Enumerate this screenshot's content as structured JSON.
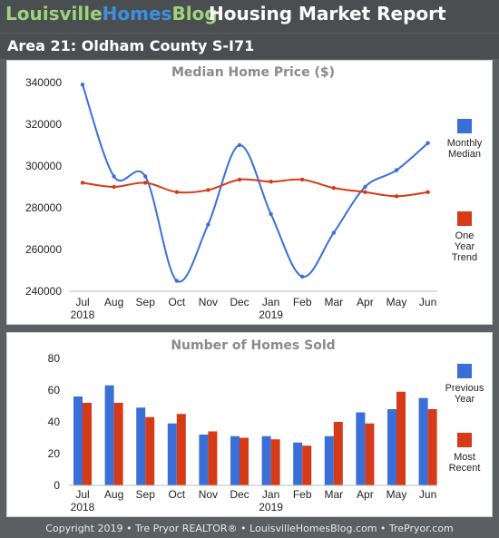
{
  "header": {
    "brand_part1": "Louisville",
    "brand_part2": "Homes",
    "brand_part3": "Blog",
    "report_title": "Housing Market Report"
  },
  "area": {
    "title": "Area 21: Oldham County S-I71"
  },
  "footer": {
    "text": "Copyright 2019 • Tre Pryor REALTOR® • LouisvilleHomesBlog.com • TrePryor.com"
  },
  "colors": {
    "blue": "#3a6fd8",
    "red": "#d63a17"
  },
  "chart_data": [
    {
      "type": "line",
      "title": "Median Home Price ($)",
      "categories": [
        "Jul",
        "Aug",
        "Sep",
        "Oct",
        "Nov",
        "Dec",
        "Jan",
        "Feb",
        "Mar",
        "Apr",
        "May",
        "Jun"
      ],
      "year_labels": [
        "2018",
        "",
        "",
        "",
        "",
        "",
        "2019",
        "",
        "",
        "",
        "",
        ""
      ],
      "y_ticks": [
        "240000",
        "260000",
        "280000",
        "300000",
        "320000",
        "340000"
      ],
      "ylim": [
        240000,
        340000
      ],
      "series": [
        {
          "name": "Monthly Median",
          "legend_lines": [
            "Monthly",
            "Median"
          ],
          "color": "#3a6fd8",
          "values": [
            339000,
            295000,
            295000,
            245000,
            272000,
            310000,
            277000,
            247000,
            268000,
            290000,
            298000,
            311000
          ]
        },
        {
          "name": "One Year Trend",
          "legend_lines": [
            "One",
            "Year",
            "Trend"
          ],
          "color": "#d63a17",
          "values": [
            292000,
            290000,
            292000,
            287500,
            288500,
            293500,
            292500,
            293500,
            289500,
            287500,
            285500,
            287500
          ]
        }
      ],
      "grid": false,
      "legend": "right"
    },
    {
      "type": "bar",
      "title": "Number of Homes Sold",
      "categories": [
        "Jul",
        "Aug",
        "Sep",
        "Oct",
        "Nov",
        "Dec",
        "Jan",
        "Feb",
        "Mar",
        "Apr",
        "May",
        "Jun"
      ],
      "year_labels": [
        "2018",
        "",
        "",
        "",
        "",
        "",
        "2019",
        "",
        "",
        "",
        "",
        ""
      ],
      "y_ticks": [
        "0",
        "20",
        "40",
        "60",
        "80"
      ],
      "ylim": [
        0,
        80
      ],
      "series": [
        {
          "name": "Previous Year",
          "legend_lines": [
            "Previous",
            "Year"
          ],
          "color": "#3a6fd8",
          "values": [
            56,
            63,
            49,
            39,
            32,
            31,
            31,
            27,
            31,
            46,
            48,
            55
          ]
        },
        {
          "name": "Most Recent",
          "legend_lines": [
            "Most",
            "Recent"
          ],
          "color": "#d63a17",
          "values": [
            52,
            52,
            43,
            45,
            34,
            30,
            29,
            25,
            40,
            39,
            59,
            48
          ]
        }
      ],
      "grid": false,
      "legend": "right"
    }
  ]
}
